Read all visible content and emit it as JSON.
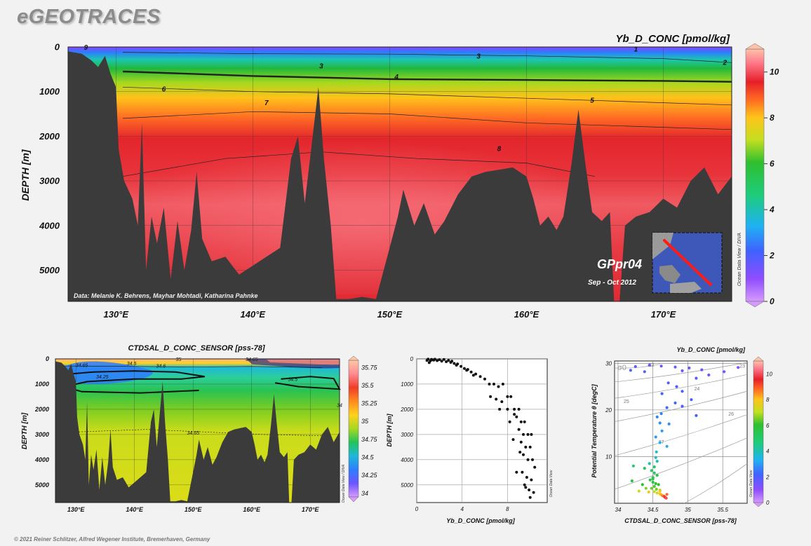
{
  "header": {
    "brand": "eGEOTRACES",
    "footer": "© 2021 Reiner Schlitzer, Alfred Wegener Institute, Bremerhaven, Germany"
  },
  "colors": {
    "terrain": "#3b3b3b",
    "contour_line": "#222222",
    "background": "#f2f2f2"
  },
  "chart_data": [
    {
      "type": "heatmap",
      "title": "Yb_D_CONC [pmol/kg]",
      "xlabel": "",
      "ylabel": "DEPTH [m]",
      "x_ticks": [
        "130°E",
        "140°E",
        "150°E",
        "160°E",
        "170°E"
      ],
      "x_tick_values": [
        130,
        140,
        150,
        160,
        170
      ],
      "xlim": [
        126.5,
        175
      ],
      "y_ticks": [
        0,
        1000,
        2000,
        3000,
        4000,
        5000
      ],
      "ylim": [
        0,
        5700
      ],
      "colorbar_ticks": [
        0,
        2,
        4,
        6,
        8,
        10
      ],
      "colorbar_range": [
        0,
        11
      ],
      "contour_labels": [
        "1",
        "2",
        "3",
        "3",
        "4",
        "5",
        "6",
        "7",
        "8",
        "9"
      ],
      "credit": "Data: Melanie K. Behrens, Mayhar Mohtadi, Katharina Pahnke",
      "section_label": "GPpr04",
      "cruise_dates": "Sep - Oct 2012",
      "side_label": "Ocean Data View / DIVA"
    },
    {
      "type": "heatmap",
      "title": "CTDSAL_D_CONC_SENSOR [pss-78]",
      "ylabel": "DEPTH [m]",
      "x_ticks": [
        "130°E",
        "140°E",
        "150°E",
        "160°E",
        "170°E"
      ],
      "x_tick_values": [
        130,
        140,
        150,
        160,
        170
      ],
      "xlim": [
        126.5,
        175
      ],
      "y_ticks": [
        0,
        1000,
        2000,
        3000,
        4000,
        5000
      ],
      "ylim": [
        0,
        5700
      ],
      "colorbar_ticks": [
        "34",
        "34.25",
        "34.5",
        "34.75",
        "35",
        "35.25",
        "35.5",
        "35.75"
      ],
      "colorbar_range": [
        33.95,
        35.85
      ],
      "contour_labels": [
        "34.65",
        "34.5",
        "34.6",
        "34.25",
        "35",
        "34.5",
        "34",
        "34.65",
        "34.65"
      ],
      "side_label": "Ocean Data View / DIVA"
    },
    {
      "type": "scatter",
      "xlabel": "Yb_D_CONC [pmol/kg]",
      "ylabel": "DEPTH [m]",
      "x_ticks": [
        0,
        4,
        8
      ],
      "xlim": [
        0,
        11.5
      ],
      "y_ticks": [
        0,
        1000,
        2000,
        3000,
        4000,
        5000
      ],
      "ylim": [
        0,
        5700
      ],
      "side_label": "Ocean Data View",
      "points": [
        [
          1.0,
          10
        ],
        [
          1.3,
          20
        ],
        [
          1.6,
          15
        ],
        [
          2.0,
          30
        ],
        [
          2.4,
          25
        ],
        [
          0.9,
          60
        ],
        [
          1.2,
          80
        ],
        [
          1.5,
          50
        ],
        [
          1.8,
          70
        ],
        [
          2.2,
          90
        ],
        [
          2.6,
          110
        ],
        [
          3.0,
          140
        ],
        [
          3.3,
          180
        ],
        [
          3.6,
          200
        ],
        [
          1.1,
          150
        ],
        [
          1.4,
          40
        ],
        [
          2.8,
          60
        ],
        [
          3.1,
          90
        ],
        [
          3.5,
          250
        ],
        [
          3.9,
          300
        ],
        [
          4.2,
          380
        ],
        [
          4.5,
          420
        ],
        [
          4.8,
          520
        ],
        [
          5.2,
          600
        ],
        [
          5.6,
          700
        ],
        [
          6.0,
          800
        ],
        [
          5.0,
          650
        ],
        [
          4.4,
          450
        ],
        [
          6.4,
          1000
        ],
        [
          6.8,
          1000
        ],
        [
          7.2,
          1100
        ],
        [
          7.6,
          1000
        ],
        [
          6.5,
          1500
        ],
        [
          7.0,
          1600
        ],
        [
          7.5,
          1700
        ],
        [
          8.0,
          1500
        ],
        [
          8.3,
          1500
        ],
        [
          7.3,
          2000
        ],
        [
          8.0,
          2000
        ],
        [
          8.6,
          2000
        ],
        [
          9.0,
          2000
        ],
        [
          8.2,
          2500
        ],
        [
          8.8,
          2300
        ],
        [
          9.2,
          2500
        ],
        [
          9.5,
          2500
        ],
        [
          9.0,
          2800
        ],
        [
          9.4,
          3000
        ],
        [
          9.8,
          3000
        ],
        [
          10.1,
          3000
        ],
        [
          9.2,
          3300
        ],
        [
          9.6,
          3500
        ],
        [
          10.0,
          3500
        ],
        [
          9.4,
          3800
        ],
        [
          9.8,
          4000
        ],
        [
          10.2,
          4000
        ],
        [
          8.8,
          4500
        ],
        [
          9.3,
          4500
        ],
        [
          9.7,
          4700
        ],
        [
          10.1,
          4800
        ],
        [
          9.5,
          5000
        ],
        [
          9.9,
          5200
        ],
        [
          10.3,
          5300
        ],
        [
          10.0,
          5500
        ],
        [
          9.6,
          5100
        ],
        [
          8.5,
          3200
        ],
        [
          9.1,
          3700
        ],
        [
          10.4,
          4300
        ],
        [
          8.6,
          2200
        ]
      ]
    },
    {
      "type": "scatter",
      "title": "Yb_D_CONC [pmol/kg]",
      "xlabel": "CTDSAL_D_CONC_SENSOR [pss-78]",
      "ylabel": "Potential Temperature θ [degC]",
      "x_ticks": [
        "34",
        "34.5",
        "35",
        "35.5"
      ],
      "xlim": [
        33.95,
        35.85
      ],
      "y_ticks": [
        10,
        20,
        30
      ],
      "ylim": [
        0,
        30.5
      ],
      "density_label": "σ0",
      "isopycnal_labels": [
        "22",
        "23",
        "24",
        "25",
        "26",
        "27"
      ],
      "colorbar_ticks": [
        0,
        2,
        4,
        6,
        8,
        10
      ],
      "colorbar_range": [
        0,
        11
      ],
      "side_label": "Ocean Data View",
      "points": [
        [
          34.25,
          29.3,
          1.8
        ],
        [
          34.45,
          29.6,
          1.5
        ],
        [
          34.62,
          29.4,
          1.6
        ],
        [
          34.82,
          29.2,
          1.7
        ],
        [
          35.02,
          29.0,
          1.5
        ],
        [
          35.2,
          28.6,
          1.4
        ],
        [
          35.52,
          28.2,
          1.3
        ],
        [
          35.72,
          29.1,
          1.2
        ],
        [
          34.18,
          28.5,
          2.0
        ],
        [
          34.38,
          28.2,
          1.9
        ],
        [
          34.92,
          28.4,
          1.6
        ],
        [
          35.3,
          27.5,
          1.5
        ],
        [
          35.12,
          26.8,
          1.8
        ],
        [
          34.72,
          25.8,
          1.9
        ],
        [
          34.84,
          25.0,
          2.0
        ],
        [
          34.92,
          24.0,
          2.1
        ],
        [
          34.63,
          23.5,
          2.0
        ],
        [
          35.05,
          22.2,
          2.1
        ],
        [
          34.82,
          21.5,
          2.3
        ],
        [
          34.7,
          20.5,
          2.4
        ],
        [
          34.92,
          20.8,
          2.0
        ],
        [
          34.62,
          19.2,
          2.6
        ],
        [
          34.56,
          18.5,
          2.7
        ],
        [
          34.73,
          17.0,
          2.8
        ],
        [
          34.6,
          17.2,
          2.8
        ],
        [
          35.12,
          18.8,
          2.2
        ],
        [
          34.63,
          15.5,
          3.0
        ],
        [
          34.54,
          14.2,
          3.0
        ],
        [
          34.6,
          13.0,
          3.3
        ],
        [
          34.7,
          12.2,
          3.2
        ],
        [
          34.55,
          11.0,
          3.6
        ],
        [
          34.54,
          9.8,
          3.8
        ],
        [
          34.56,
          9.0,
          4.0
        ],
        [
          34.45,
          8.5,
          4.2
        ],
        [
          34.22,
          8.0,
          5.0
        ],
        [
          34.38,
          7.5,
          5.2
        ],
        [
          34.48,
          7.0,
          5.0
        ],
        [
          34.52,
          6.5,
          5.2
        ],
        [
          34.56,
          6.0,
          5.3
        ],
        [
          34.5,
          5.5,
          5.6
        ],
        [
          34.46,
          5.0,
          5.7
        ],
        [
          34.5,
          4.5,
          5.8
        ],
        [
          34.54,
          4.2,
          6.0
        ],
        [
          34.58,
          4.0,
          6.0
        ],
        [
          34.52,
          3.6,
          6.3
        ],
        [
          34.48,
          3.2,
          6.5
        ],
        [
          34.55,
          3.0,
          6.5
        ],
        [
          34.6,
          2.8,
          6.8
        ],
        [
          34.52,
          2.5,
          7.0
        ],
        [
          34.56,
          2.2,
          7.4
        ],
        [
          34.6,
          2.0,
          7.8
        ],
        [
          34.62,
          1.8,
          8.2
        ],
        [
          34.64,
          1.6,
          8.6
        ],
        [
          34.66,
          1.5,
          9.0
        ],
        [
          34.67,
          1.3,
          9.4
        ],
        [
          34.68,
          1.2,
          9.8
        ],
        [
          34.69,
          1.1,
          10.0
        ],
        [
          34.2,
          4.8,
          5.5
        ],
        [
          34.35,
          4.0,
          5.9
        ],
        [
          34.4,
          3.2,
          6.6
        ],
        [
          34.3,
          2.6,
          7.2
        ],
        [
          34.44,
          2.4,
          7.5
        ],
        [
          34.6,
          2.6,
          8.0
        ],
        [
          34.7,
          1.9,
          8.8
        ],
        [
          34.5,
          5.2,
          5.4
        ],
        [
          34.52,
          7.8,
          5.0
        ]
      ]
    }
  ]
}
